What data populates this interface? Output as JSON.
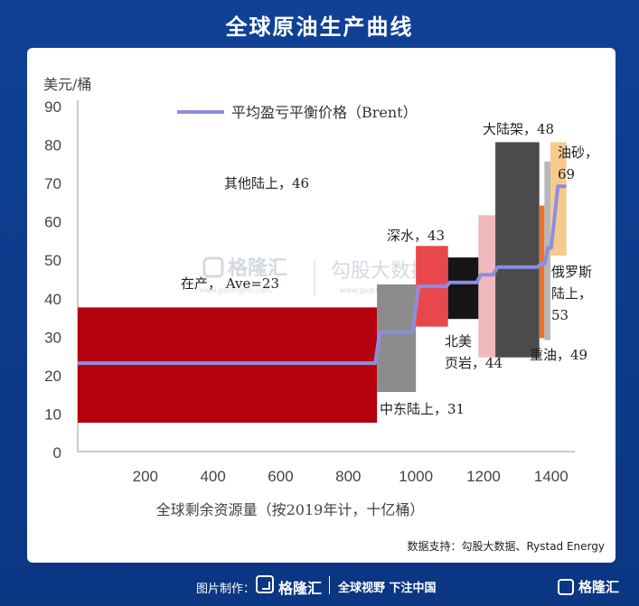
{
  "title": "全球原油生产曲线",
  "source": "数据支持：勾股大数据、Rystad Energy",
  "footer": {
    "made_by": "图片制作：",
    "brand": "格隆汇",
    "slogan": "全球视野 下注中国"
  },
  "watermarks": [
    "格隆汇",
    "www.gelonghui.com",
    "勾股大数据",
    "www.gogudata.com"
  ],
  "chart_data": {
    "type": "bar",
    "title": "",
    "ylabel": "美元/桶",
    "xlabel": "全球剩余资源量（按2019年计，十亿桶）",
    "xlim": [
      0,
      1470
    ],
    "ylim": [
      0,
      90
    ],
    "xticks": [
      200,
      400,
      600,
      800,
      1000,
      1200,
      1400
    ],
    "yticks": [
      0,
      10,
      20,
      30,
      40,
      50,
      60,
      70,
      80,
      90
    ],
    "legend": {
      "label": "平均盈亏平衡价格（Brent）",
      "color": "#8a8ee0",
      "placement": "top-left"
    },
    "segments": [
      {
        "name": "在产",
        "x0": 0,
        "x1": 885,
        "y0": 7.5,
        "y1": 37.5,
        "color": "#b5000e",
        "breakeven": 23,
        "label": "在产， Ave=23"
      },
      {
        "name": "中东陆上",
        "x0": 885,
        "x1": 1000,
        "y0": 15.5,
        "y1": 43.5,
        "color": "#8c8c8c",
        "breakeven": 31,
        "label": "中东陆上，31"
      },
      {
        "name": "深水",
        "x0": 1000,
        "x1": 1095,
        "y0": 32.5,
        "y1": 53.5,
        "color": "#e8474d",
        "breakeven": 43,
        "label": "深水，43"
      },
      {
        "name": "北美页岩",
        "x0": 1095,
        "x1": 1185,
        "y0": 34.5,
        "y1": 50.5,
        "color": "#151515",
        "breakeven": 44,
        "label": "北美\n页岩，44"
      },
      {
        "name": "其他陆上",
        "x0": 1185,
        "x1": 1235,
        "y0": 24.5,
        "y1": 61.5,
        "color": "#f2b9bc",
        "breakeven": 46,
        "label": "其他陆上，46"
      },
      {
        "name": "大陆架",
        "x0": 1235,
        "x1": 1365,
        "y0": 24.5,
        "y1": 80.5,
        "color": "#4b4b4d",
        "breakeven": 48,
        "label": "大陆架，48"
      },
      {
        "name": "重油",
        "x0": 1365,
        "x1": 1380,
        "y0": 29.5,
        "y1": 64.0,
        "color": "#e8722f",
        "breakeven": 49,
        "label": "重油，49"
      },
      {
        "name": "俄罗斯陆上",
        "x0": 1380,
        "x1": 1398,
        "y0": 29.0,
        "y1": 75.5,
        "color": "#b7b7b7",
        "breakeven": 53,
        "label": "俄罗斯\n陆上，\n53"
      },
      {
        "name": "油砂",
        "x0": 1398,
        "x1": 1445,
        "y0": 51.0,
        "y1": 80.5,
        "color": "#f6c98c",
        "breakeven": 69,
        "label": "油砂，\n69"
      }
    ],
    "breakeven_line": [
      [
        0,
        23
      ],
      [
        880,
        23
      ],
      [
        893,
        31
      ],
      [
        990,
        31
      ],
      [
        1008,
        43
      ],
      [
        1090,
        43
      ],
      [
        1100,
        44
      ],
      [
        1180,
        44
      ],
      [
        1192,
        46
      ],
      [
        1228,
        46
      ],
      [
        1242,
        48
      ],
      [
        1360,
        48
      ],
      [
        1372,
        49
      ],
      [
        1382,
        49
      ],
      [
        1390,
        53
      ],
      [
        1400,
        53
      ],
      [
        1420,
        69
      ],
      [
        1445,
        69
      ]
    ]
  }
}
